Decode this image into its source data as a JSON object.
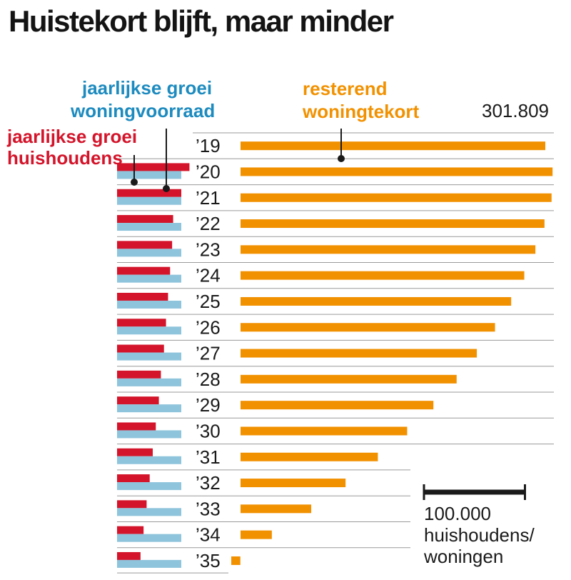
{
  "title": "Huistekort blijft, maar minder",
  "legend": {
    "households_line1": "jaarlijkse groei",
    "households_line2": "huishoudens",
    "stock_line1": "jaarlijkse groei",
    "stock_line2": "woningvoorraad",
    "shortage_line1": "resterend",
    "shortage_line2": "woningtekort"
  },
  "peak_label": "301.809",
  "scale": {
    "value": 100000,
    "line1": "100.000",
    "line2": "huishoudens/",
    "line3": "woningen"
  },
  "colors": {
    "households": "#d4142a",
    "stock": "#8ec4dc",
    "shortage": "#f29100",
    "households_text": "#d4142a",
    "stock_text": "#1d8bbf",
    "shortage_text": "#f29100"
  },
  "chart_data": {
    "type": "bar",
    "categories": [
      "’19",
      "’20",
      "’21",
      "’22",
      "’23",
      "’24",
      "’25",
      "’26",
      "’27",
      "’28",
      "’29",
      "’30",
      "’31",
      "’32",
      "’33",
      "’34",
      "’35"
    ],
    "series": [
      {
        "name": "resterend woningtekort",
        "values": [
          301809,
          309000,
          308000,
          301000,
          292000,
          281000,
          268000,
          252000,
          234000,
          214000,
          191000,
          165000,
          136000,
          104000,
          70000,
          31000,
          9000
        ]
      },
      {
        "name": "jaarlijkse groei huishoudens",
        "values": [
          null,
          71000,
          63000,
          55000,
          54000,
          52000,
          50000,
          48000,
          46000,
          43000,
          41000,
          38000,
          35000,
          32000,
          29000,
          26000,
          23000
        ]
      },
      {
        "name": "jaarlijkse groei woningvoorraad",
        "values": [
          null,
          63000,
          63000,
          63000,
          63000,
          63000,
          63000,
          63000,
          63000,
          63000,
          63000,
          63000,
          63000,
          63000,
          63000,
          63000,
          63000
        ]
      }
    ]
  }
}
